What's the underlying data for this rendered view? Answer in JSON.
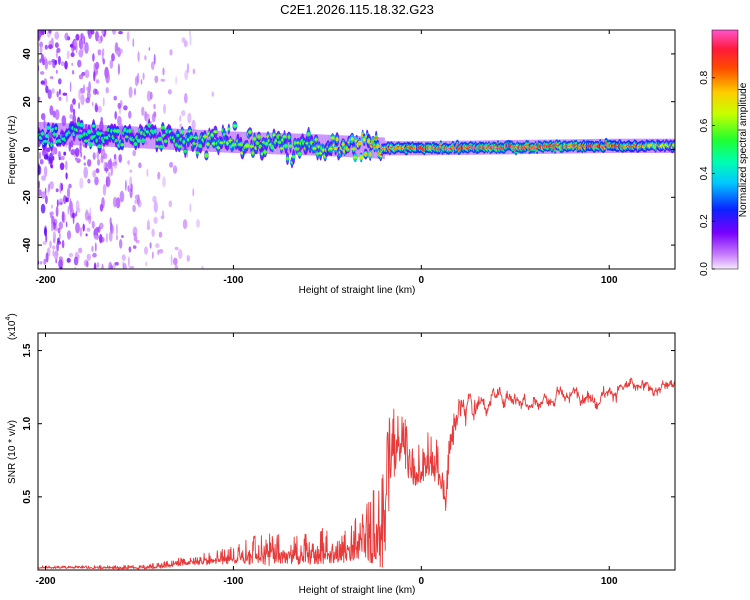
{
  "page_title": "C2E1.2026.115.18.32.G23",
  "chart_data": [
    {
      "id": "spectrogram",
      "type": "heatmap",
      "xlabel": "Height of straight line (km)",
      "ylabel": "Frequency (Hz)",
      "xlim": [
        -204,
        135
      ],
      "ylim": [
        -50,
        50
      ],
      "xticks": [
        "-200",
        "-100",
        "0",
        "100"
      ],
      "xtick_values": [
        -200,
        -100,
        0,
        100
      ],
      "yticks": [
        "-40",
        "-20",
        "0",
        "20",
        "40"
      ],
      "ytick_values": [
        -40,
        -20,
        0,
        20,
        40
      ],
      "colorbar": {
        "label": "Normalized spectral amplitude",
        "range": [
          0,
          1
        ],
        "ticks": [
          "0.0",
          "0.2",
          "0.4",
          "0.6",
          "0.8"
        ],
        "tick_values": [
          0.0,
          0.2,
          0.4,
          0.6,
          0.8
        ]
      },
      "description_of_data": {
        "main_band_center_hz": [
          [
            -204,
            7
          ],
          [
            -150,
            5
          ],
          [
            -100,
            3
          ],
          [
            -60,
            2
          ],
          [
            -30,
            1
          ],
          [
            -20,
            0.5
          ],
          [
            0,
            0.5
          ],
          [
            50,
            1
          ],
          [
            100,
            1.5
          ],
          [
            135,
            1.5
          ]
        ],
        "main_band_peak_amplitude": [
          [
            -204,
            0.45
          ],
          [
            -150,
            0.5
          ],
          [
            -100,
            0.55
          ],
          [
            -60,
            0.55
          ],
          [
            -25,
            0.7
          ],
          [
            0,
            0.85
          ],
          [
            50,
            0.9
          ],
          [
            100,
            0.85
          ],
          [
            135,
            0.6
          ]
        ],
        "noise_extent_x": [
          -204,
          -120
        ]
      }
    },
    {
      "id": "snr",
      "type": "line",
      "xlabel": "Height of straight line (km)",
      "ylabel": "SNR (10 * v/v)",
      "ylabel_multiplier": "(x10",
      "ylabel_exponent": "4",
      "ylabel_multiplier_close": ")",
      "xlim": [
        -204,
        135
      ],
      "ylim": [
        0,
        1.62
      ],
      "xticks": [
        "-200",
        "-100",
        "0",
        "100"
      ],
      "xtick_values": [
        -200,
        -100,
        0,
        100
      ],
      "yticks": [
        "0.5",
        "1.0",
        "1.5"
      ],
      "ytick_values": [
        0.5,
        1.0,
        1.5
      ],
      "series": [
        {
          "name": "SNR",
          "color": "#e83a3a",
          "envelope_x": [
            -204,
            -180,
            -150,
            -140,
            -130,
            -120,
            -100,
            -90,
            -80,
            -70,
            -60,
            -50,
            -40,
            -30,
            -25,
            -22,
            -20,
            -18,
            -15,
            -12,
            -10,
            -5,
            0,
            5,
            10,
            13,
            15,
            20,
            30,
            40,
            50,
            60,
            70,
            80,
            90,
            100,
            110,
            120,
            130,
            135
          ],
          "envelope_base": [
            0.02,
            0.02,
            0.02,
            0.03,
            0.05,
            0.07,
            0.1,
            0.13,
            0.14,
            0.14,
            0.15,
            0.17,
            0.2,
            0.25,
            0.3,
            0.35,
            0.45,
            0.65,
            0.85,
            0.95,
            0.93,
            0.7,
            0.75,
            0.8,
            0.72,
            0.5,
            0.85,
            1.1,
            1.15,
            1.2,
            1.2,
            1.18,
            1.15,
            1.18,
            1.2,
            1.22,
            1.25,
            1.22,
            1.25,
            1.28
          ],
          "envelope_spread": [
            0.02,
            0.02,
            0.03,
            0.04,
            0.06,
            0.07,
            0.12,
            0.2,
            0.22,
            0.2,
            0.23,
            0.25,
            0.3,
            0.35,
            0.55,
            0.7,
            0.9,
            0.7,
            0.55,
            0.45,
            0.35,
            0.3,
            0.3,
            0.35,
            0.3,
            0.2,
            0.25,
            0.15,
            0.08,
            0.06,
            0.07,
            0.06,
            0.06,
            0.05,
            0.06,
            0.05,
            0.05,
            0.05,
            0.05,
            0.04
          ]
        }
      ]
    }
  ]
}
